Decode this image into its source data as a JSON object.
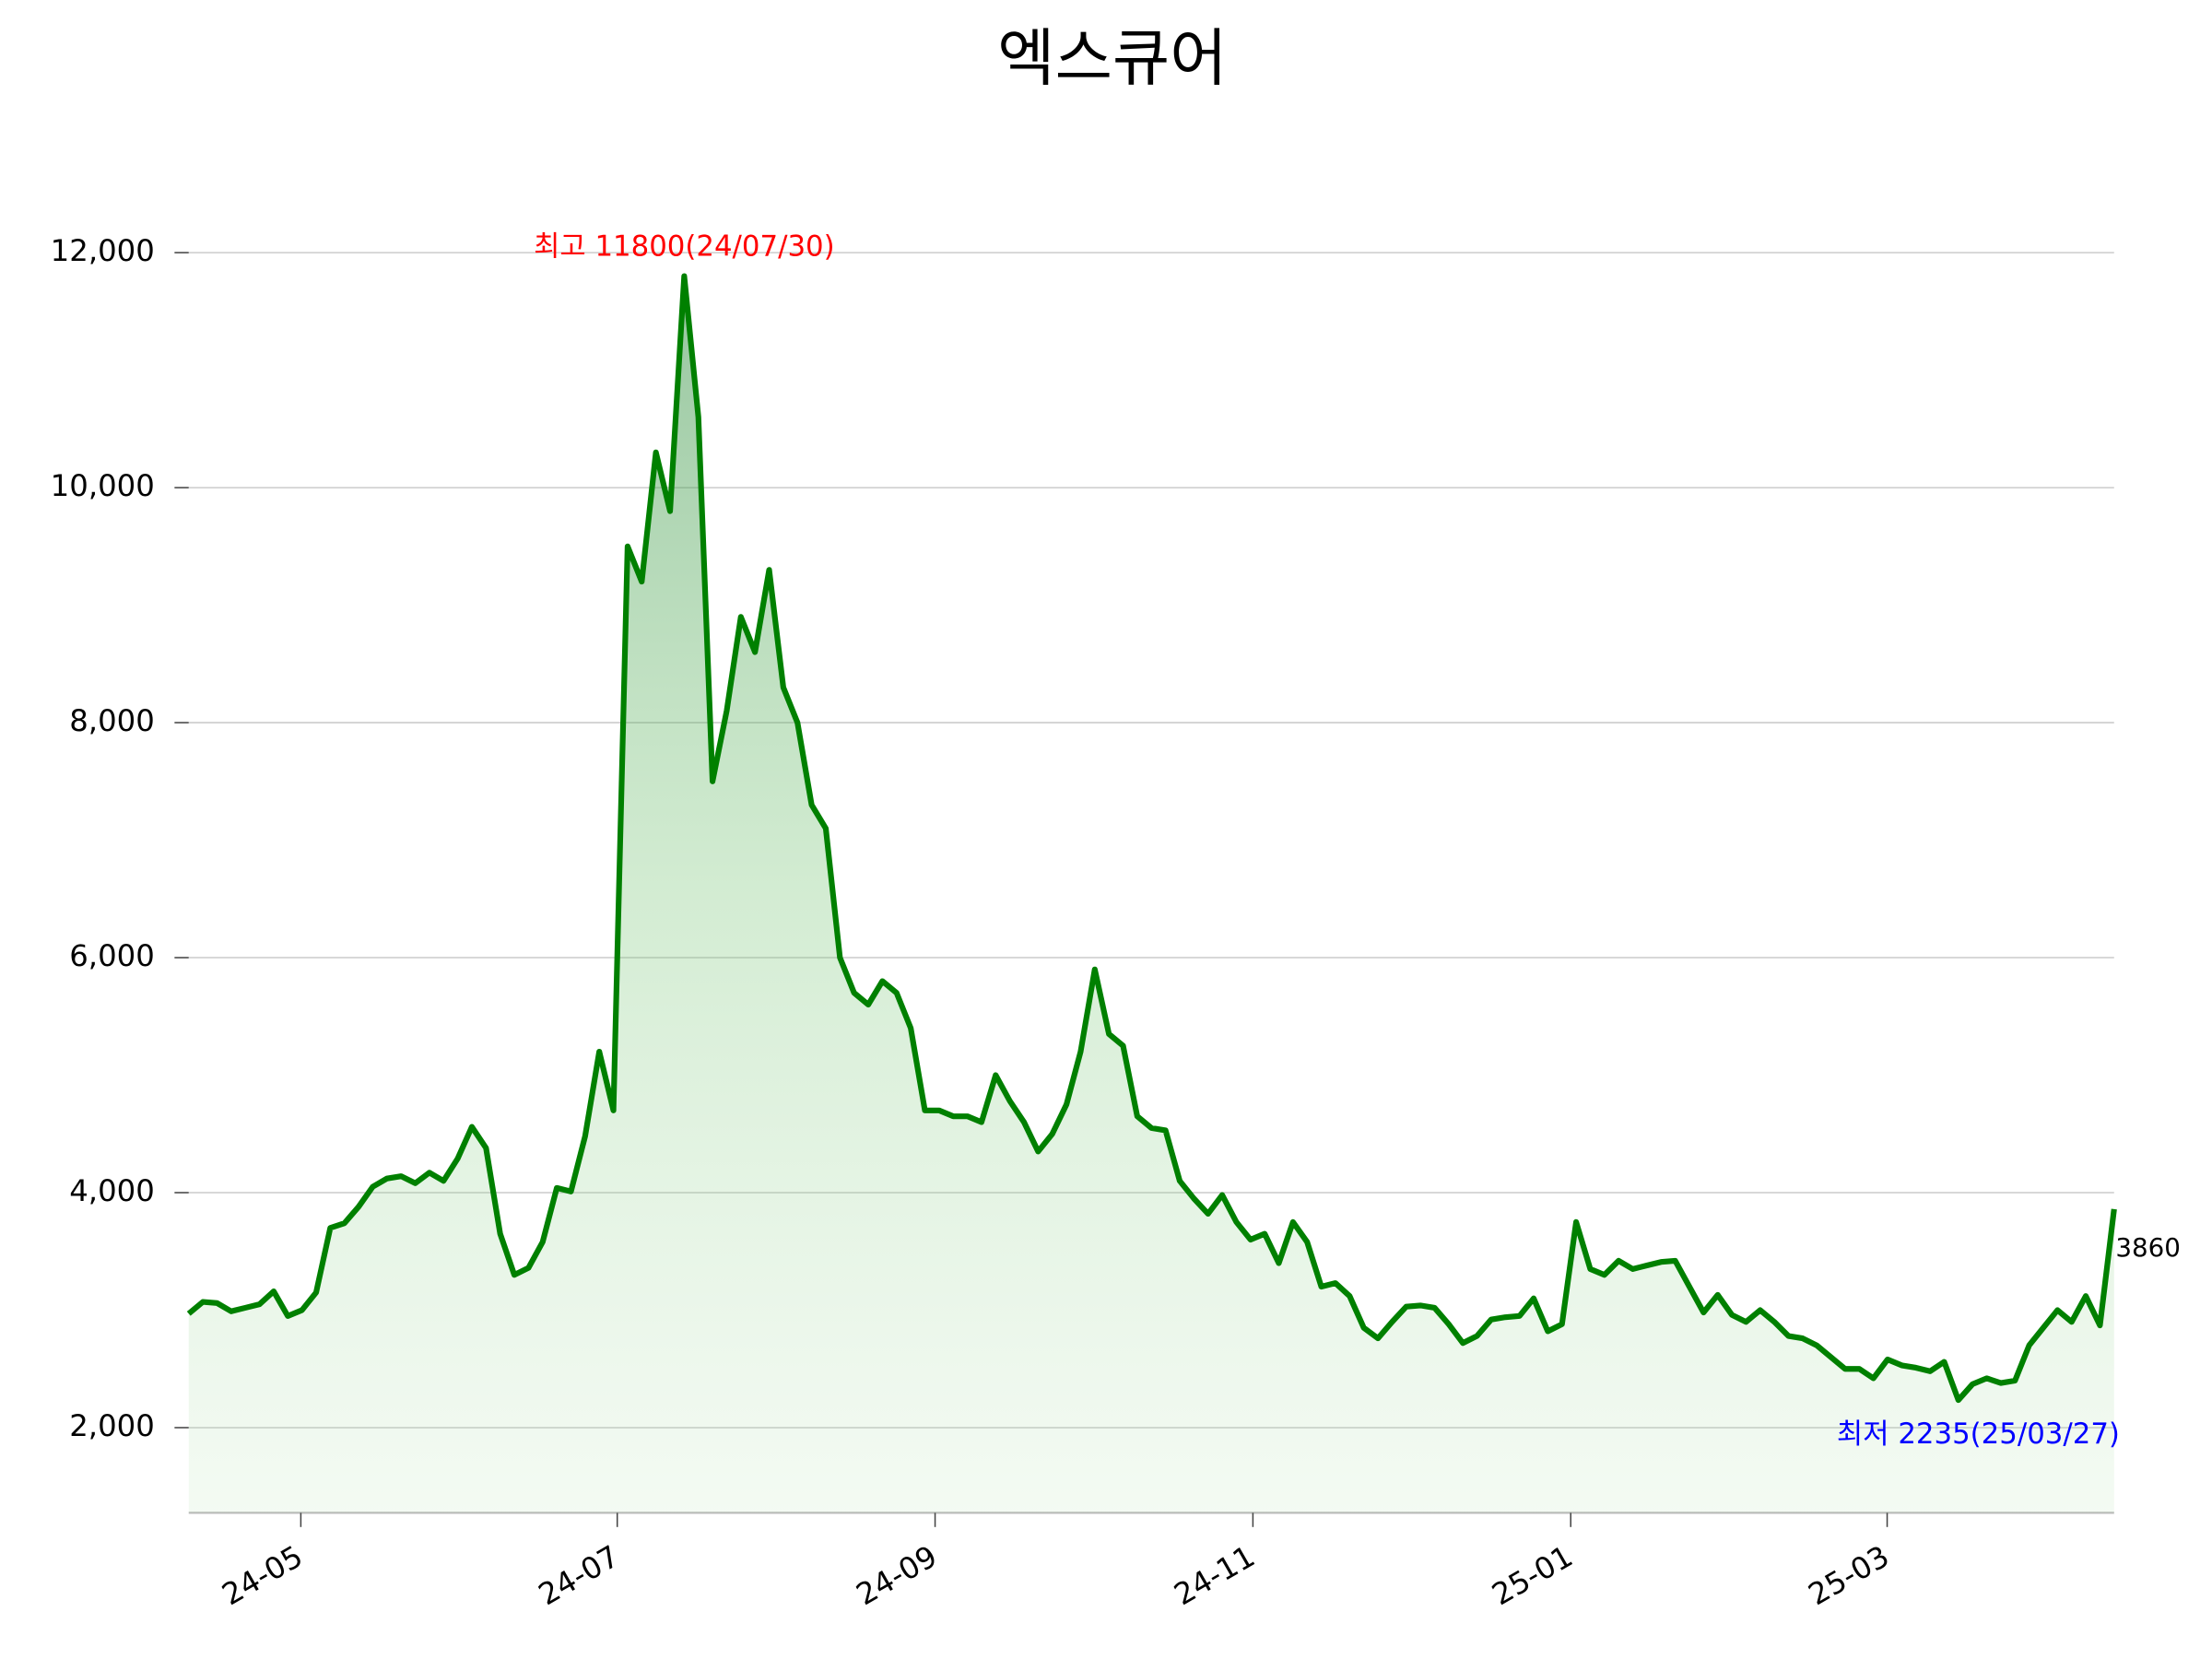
{
  "chart_data": {
    "type": "line",
    "title": "엑스큐어",
    "values": [
      2970,
      3070,
      3060,
      2990,
      3020,
      3050,
      3160,
      2950,
      3000,
      3150,
      3700,
      3740,
      3880,
      4050,
      4120,
      4140,
      4080,
      4170,
      4100,
      4290,
      4560,
      4380,
      3650,
      3300,
      3360,
      3580,
      4040,
      4010,
      4480,
      5200,
      4700,
      9500,
      9200,
      10300,
      9800,
      11800,
      10600,
      7500,
      8100,
      8900,
      8600,
      9300,
      8300,
      8000,
      7300,
      7100,
      6000,
      5700,
      5600,
      5800,
      5700,
      5400,
      4700,
      4700,
      4650,
      4650,
      4600,
      5000,
      4780,
      4600,
      4350,
      4500,
      4750,
      5200,
      5900,
      5350,
      5250,
      4650,
      4550,
      4530,
      4100,
      3950,
      3820,
      3980,
      3750,
      3600,
      3650,
      3400,
      3750,
      3580,
      3200,
      3230,
      3120,
      2850,
      2760,
      2900,
      3030,
      3040,
      3020,
      2880,
      2720,
      2780,
      2920,
      2940,
      2950,
      3100,
      2820,
      2880,
      3750,
      3350,
      3300,
      3420,
      3350,
      3380,
      3410,
      3420,
      3200,
      2980,
      3130,
      2960,
      2900,
      3000,
      2900,
      2780,
      2760,
      2700,
      2600,
      2500,
      2500,
      2420,
      2580,
      2530,
      2510,
      2480,
      2560,
      2235,
      2370,
      2420,
      2380,
      2400,
      2700,
      2850,
      3000,
      2900,
      3120,
      2870,
      3860
    ],
    "color": "#008000",
    "xlim": [
      0,
      136
    ],
    "xticks": [
      {
        "value": 7.92,
        "label": "24-05"
      },
      {
        "value": 30.27,
        "label": "24-07"
      },
      {
        "value": 52.72,
        "label": "24-09"
      },
      {
        "value": 75.17,
        "label": "24-11"
      },
      {
        "value": 97.62,
        "label": "25-01"
      },
      {
        "value": 119.97,
        "label": "25-03"
      }
    ],
    "ylim": [
      1275,
      12580
    ],
    "yticks": [
      {
        "value": 2000,
        "label": "2,000"
      },
      {
        "value": 4000,
        "label": "4,000"
      },
      {
        "value": 6000,
        "label": "6,000"
      },
      {
        "value": 8000,
        "label": "8,000"
      },
      {
        "value": 10000,
        "label": "10,000"
      },
      {
        "value": 12000,
        "label": "12,000"
      }
    ],
    "grid": true,
    "annotations": [
      {
        "text": "최고 11800(24/07/30)",
        "color": "#ff0000"
      },
      {
        "text": "최저 2235(25/03/27)",
        "color": "#0000ff"
      }
    ]
  }
}
